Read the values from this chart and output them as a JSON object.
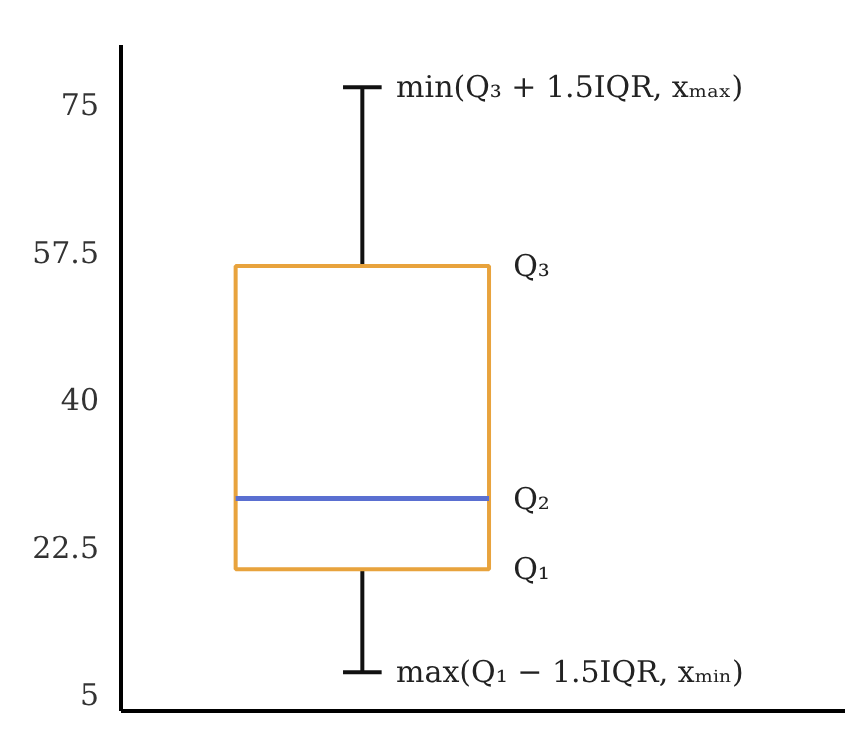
{
  "chart_data": {
    "type": "box",
    "categories": [
      null
    ],
    "series": [
      {
        "color": "#e8a33d",
        "boxes": [
          {
            "low": 7.6,
            "q1": 19.8,
            "median": 28.2,
            "q3": 55.8,
            "high": 77
          }
        ]
      }
    ],
    "ylim": [
      3,
      82
    ],
    "yticks": [
      5,
      22.5,
      40,
      57.5,
      75
    ],
    "grid": false,
    "annotations": [
      "min(Q₃ + 1.5IQR, xₘₐₓ)",
      "Q₃",
      "Q₂",
      "Q₁",
      "max(Q₁ − 1.5IQR, xₘᵢₙ)"
    ]
  }
}
